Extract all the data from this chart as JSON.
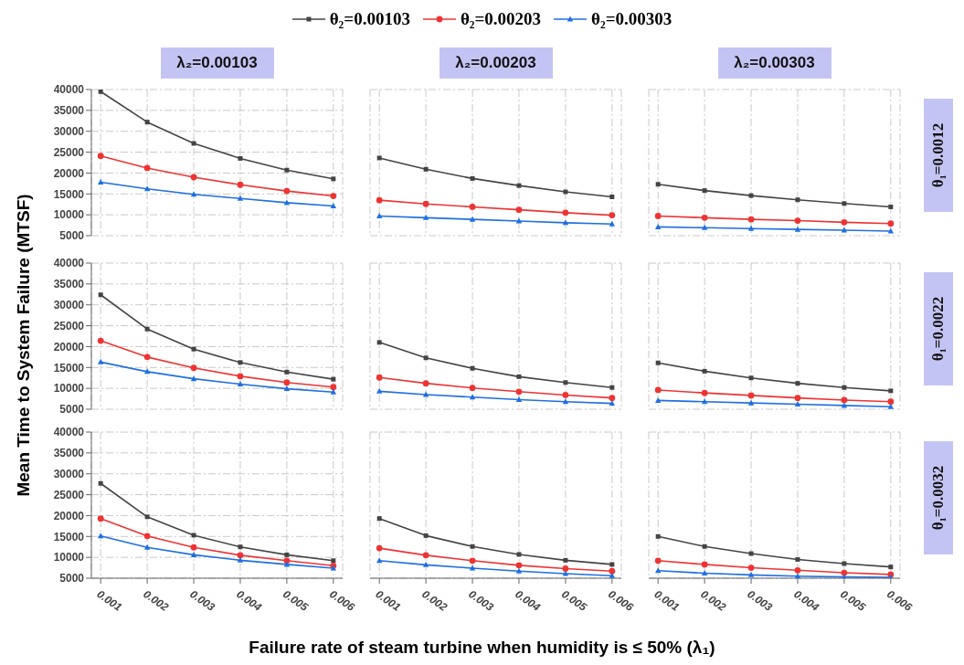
{
  "chart_data": [
    {
      "type": "line",
      "title": "λ₂=0.00103",
      "x": [
        0.001,
        0.002,
        0.003,
        0.004,
        0.005,
        0.006
      ],
      "xlim": [
        0.0008,
        0.0062
      ],
      "xticks": [
        0.001,
        0.002,
        0.003,
        0.004,
        0.005,
        0.006
      ],
      "ylim": [
        5000,
        40000
      ],
      "yticks": [
        5000,
        10000,
        15000,
        20000,
        25000,
        30000,
        35000,
        40000
      ],
      "grid": true,
      "tick_labels": "y",
      "legend": "top",
      "series": [
        {
          "name": "θ₂=0.00103",
          "color": "#444444",
          "marker": "square",
          "values": [
            39500,
            32200,
            27100,
            23500,
            20700,
            18600
          ]
        },
        {
          "name": "θ₂=0.00203",
          "color": "#ee3333",
          "marker": "circle",
          "values": [
            24100,
            21200,
            19000,
            17200,
            15700,
            14500
          ]
        },
        {
          "name": "θ₂=0.00303",
          "color": "#1f6fe0",
          "marker": "triangle",
          "values": [
            17800,
            16200,
            14900,
            13900,
            12900,
            12100
          ]
        }
      ]
    },
    {
      "type": "line",
      "title": "λ₂=0.00203",
      "x": [
        0.001,
        0.002,
        0.003,
        0.004,
        0.005,
        0.006
      ],
      "xlim": [
        0.0008,
        0.0062
      ],
      "xticks": [
        0.001,
        0.002,
        0.003,
        0.004,
        0.005,
        0.006
      ],
      "ylim": [
        5000,
        40000
      ],
      "yticks": [
        5000,
        10000,
        15000,
        20000,
        25000,
        30000,
        35000,
        40000
      ],
      "grid": true,
      "tick_labels": false,
      "series": [
        {
          "color": "#444444",
          "marker": "square",
          "values": [
            23600,
            20900,
            18700,
            17000,
            15500,
            14300
          ]
        },
        {
          "color": "#ee3333",
          "marker": "circle",
          "values": [
            13500,
            12600,
            11900,
            11200,
            10500,
            9900
          ]
        },
        {
          "color": "#1f6fe0",
          "marker": "triangle",
          "values": [
            9700,
            9300,
            8900,
            8500,
            8100,
            7800
          ]
        }
      ]
    },
    {
      "type": "line",
      "title": "λ₂=0.00303",
      "annotations": [
        "θ₁=0.0012"
      ],
      "x": [
        0.001,
        0.002,
        0.003,
        0.004,
        0.005,
        0.006
      ],
      "xlim": [
        0.0008,
        0.0062
      ],
      "xticks": [
        0.001,
        0.002,
        0.003,
        0.004,
        0.005,
        0.006
      ],
      "ylim": [
        5000,
        40000
      ],
      "yticks": [
        5000,
        10000,
        15000,
        20000,
        25000,
        30000,
        35000,
        40000
      ],
      "grid": true,
      "tick_labels": false,
      "series": [
        {
          "color": "#444444",
          "marker": "square",
          "values": [
            17300,
            15800,
            14600,
            13600,
            12700,
            11900
          ]
        },
        {
          "color": "#ee3333",
          "marker": "circle",
          "values": [
            9700,
            9300,
            8900,
            8600,
            8200,
            7900
          ]
        },
        {
          "color": "#1f6fe0",
          "marker": "triangle",
          "values": [
            7100,
            6900,
            6700,
            6500,
            6300,
            6100
          ]
        }
      ]
    },
    {
      "type": "line",
      "ylabel": "Mean Time to System Failure (MTSF)",
      "x": [
        0.001,
        0.002,
        0.003,
        0.004,
        0.005,
        0.006
      ],
      "xlim": [
        0.0008,
        0.0062
      ],
      "xticks": [
        0.001,
        0.002,
        0.003,
        0.004,
        0.005,
        0.006
      ],
      "ylim": [
        5000,
        40000
      ],
      "yticks": [
        5000,
        10000,
        15000,
        20000,
        25000,
        30000,
        35000,
        40000
      ],
      "grid": true,
      "tick_labels": "y",
      "series": [
        {
          "color": "#444444",
          "marker": "square",
          "values": [
            32400,
            24200,
            19400,
            16200,
            13900,
            12200
          ]
        },
        {
          "color": "#ee3333",
          "marker": "circle",
          "values": [
            21400,
            17500,
            14900,
            12900,
            11400,
            10300
          ]
        },
        {
          "color": "#1f6fe0",
          "marker": "triangle",
          "values": [
            16300,
            14000,
            12300,
            11000,
            9900,
            9100
          ]
        }
      ]
    },
    {
      "type": "line",
      "x": [
        0.001,
        0.002,
        0.003,
        0.004,
        0.005,
        0.006
      ],
      "xlim": [
        0.0008,
        0.0062
      ],
      "xticks": [
        0.001,
        0.002,
        0.003,
        0.004,
        0.005,
        0.006
      ],
      "ylim": [
        5000,
        40000
      ],
      "yticks": [
        5000,
        10000,
        15000,
        20000,
        25000,
        30000,
        35000,
        40000
      ],
      "grid": true,
      "tick_labels": false,
      "series": [
        {
          "color": "#444444",
          "marker": "square",
          "values": [
            21000,
            17300,
            14800,
            12800,
            11400,
            10200
          ]
        },
        {
          "color": "#ee3333",
          "marker": "circle",
          "values": [
            12600,
            11200,
            10100,
            9200,
            8400,
            7700
          ]
        },
        {
          "color": "#1f6fe0",
          "marker": "triangle",
          "values": [
            9300,
            8500,
            7900,
            7300,
            6800,
            6400
          ]
        }
      ]
    },
    {
      "type": "line",
      "annotations": [
        "θ₁=0.0022"
      ],
      "x": [
        0.001,
        0.002,
        0.003,
        0.004,
        0.005,
        0.006
      ],
      "xlim": [
        0.0008,
        0.0062
      ],
      "xticks": [
        0.001,
        0.002,
        0.003,
        0.004,
        0.005,
        0.006
      ],
      "ylim": [
        5000,
        40000
      ],
      "yticks": [
        5000,
        10000,
        15000,
        20000,
        25000,
        30000,
        35000,
        40000
      ],
      "grid": true,
      "tick_labels": false,
      "series": [
        {
          "color": "#444444",
          "marker": "square",
          "values": [
            16100,
            14100,
            12500,
            11200,
            10200,
            9400
          ]
        },
        {
          "color": "#ee3333",
          "marker": "circle",
          "values": [
            9600,
            8900,
            8300,
            7700,
            7200,
            6800
          ]
        },
        {
          "color": "#1f6fe0",
          "marker": "triangle",
          "values": [
            7100,
            6800,
            6500,
            6200,
            5900,
            5600
          ]
        }
      ]
    },
    {
      "type": "line",
      "x": [
        0.001,
        0.002,
        0.003,
        0.004,
        0.005,
        0.006
      ],
      "xlim": [
        0.0008,
        0.0062
      ],
      "xticks": [
        0.001,
        0.002,
        0.003,
        0.004,
        0.005,
        0.006
      ],
      "ylim": [
        5000,
        40000
      ],
      "yticks": [
        5000,
        10000,
        15000,
        20000,
        25000,
        30000,
        35000,
        40000
      ],
      "grid": true,
      "series": [
        {
          "color": "#444444",
          "marker": "square",
          "values": [
            27700,
            19700,
            15300,
            12500,
            10600,
            9200
          ]
        },
        {
          "color": "#ee3333",
          "marker": "circle",
          "values": [
            19300,
            15100,
            12400,
            10500,
            9200,
            8000
          ]
        },
        {
          "color": "#1f6fe0",
          "marker": "triangle",
          "values": [
            15100,
            12400,
            10600,
            9300,
            8300,
            7400
          ]
        }
      ]
    },
    {
      "type": "line",
      "xlabel": "Failure rate of steam turbine when humidity is ≤ 50% (λ₁)",
      "x": [
        0.001,
        0.002,
        0.003,
        0.004,
        0.005,
        0.006
      ],
      "xlim": [
        0.0008,
        0.0062
      ],
      "xticks": [
        0.001,
        0.002,
        0.003,
        0.004,
        0.005,
        0.006
      ],
      "ylim": [
        5000,
        40000
      ],
      "yticks": [
        5000,
        10000,
        15000,
        20000,
        25000,
        30000,
        35000,
        40000
      ],
      "grid": true,
      "tick_labels": "x",
      "series": [
        {
          "color": "#444444",
          "marker": "square",
          "values": [
            19300,
            15200,
            12600,
            10700,
            9300,
            8300
          ]
        },
        {
          "color": "#ee3333",
          "marker": "circle",
          "values": [
            12200,
            10500,
            9200,
            8100,
            7300,
            6700
          ]
        },
        {
          "color": "#1f6fe0",
          "marker": "triangle",
          "values": [
            9200,
            8200,
            7400,
            6700,
            6100,
            5600
          ]
        }
      ]
    },
    {
      "type": "line",
      "annotations": [
        "θ₁=0.0032"
      ],
      "x": [
        0.001,
        0.002,
        0.003,
        0.004,
        0.005,
        0.006
      ],
      "xlim": [
        0.0008,
        0.0062
      ],
      "xticks": [
        0.001,
        0.002,
        0.003,
        0.004,
        0.005,
        0.006
      ],
      "ylim": [
        5000,
        40000
      ],
      "yticks": [
        5000,
        10000,
        15000,
        20000,
        25000,
        30000,
        35000,
        40000
      ],
      "grid": true,
      "tick_labels": "x",
      "series": [
        {
          "color": "#444444",
          "marker": "square",
          "values": [
            15000,
            12600,
            10900,
            9500,
            8500,
            7700
          ]
        },
        {
          "color": "#ee3333",
          "marker": "circle",
          "values": [
            9200,
            8300,
            7500,
            6900,
            6300,
            5900
          ]
        },
        {
          "color": "#1f6fe0",
          "marker": "triangle",
          "values": [
            6800,
            6200,
            5800,
            5500,
            5300,
            5200
          ]
        }
      ]
    }
  ]
}
